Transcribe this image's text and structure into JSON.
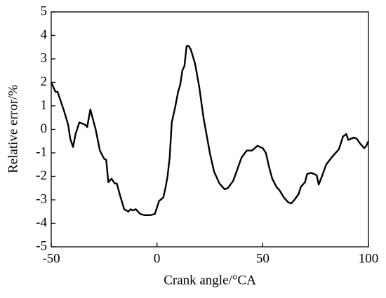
{
  "chart_data": {
    "type": "line",
    "xlabel": "Crank angle/°CA",
    "ylabel": "Relative error/%",
    "xlim": [
      -50,
      100
    ],
    "ylim": [
      -5,
      5
    ],
    "xticks": [
      -50,
      0,
      50,
      100
    ],
    "yticks": [
      -5,
      -4,
      -3,
      -2,
      -1,
      0,
      1,
      2,
      3,
      4,
      5
    ],
    "series": [
      {
        "color": "#000000",
        "x": [
          -50,
          -48,
          -47,
          -44,
          -42,
          -41,
          -39.7,
          -38.5,
          -36.7,
          -34,
          -33,
          -31.5,
          -29,
          -27,
          -25,
          -24,
          -23,
          -21.5,
          -20,
          -19,
          -17.5,
          -15.5,
          -13.5,
          -12.5,
          -11.5,
          -10,
          -8,
          -6,
          -3,
          -1,
          1,
          3,
          4,
          5,
          6,
          7,
          8.5,
          10,
          11,
          12,
          13,
          14,
          15,
          16,
          18,
          20,
          22,
          25,
          27,
          29.5,
          32,
          33.5,
          36,
          38,
          40,
          42.5,
          45,
          47.5,
          50,
          51.5,
          53,
          54.5,
          56.5,
          58,
          60,
          62,
          63.5,
          65,
          67,
          68,
          70,
          71,
          73,
          75.5,
          76.5,
          78,
          80,
          83,
          86,
          88,
          89.5,
          90.5,
          93,
          94.5,
          96,
          98,
          99,
          100
        ],
        "values": [
          2.0,
          1.6,
          1.6,
          0.8,
          0.2,
          -0.4,
          -0.75,
          -0.2,
          0.3,
          0.2,
          0.1,
          0.85,
          0.0,
          -0.9,
          -1.25,
          -1.3,
          -2.25,
          -2.1,
          -2.3,
          -2.3,
          -2.8,
          -3.4,
          -3.5,
          -3.4,
          -3.45,
          -3.4,
          -3.6,
          -3.65,
          -3.65,
          -3.6,
          -3.05,
          -2.9,
          -2.5,
          -2.0,
          -1.2,
          0.3,
          0.9,
          1.6,
          1.9,
          2.5,
          2.7,
          3.55,
          3.55,
          3.4,
          2.8,
          1.8,
          0.5,
          -1.0,
          -1.8,
          -2.3,
          -2.55,
          -2.5,
          -2.2,
          -1.7,
          -1.2,
          -0.9,
          -0.9,
          -0.7,
          -0.8,
          -1.0,
          -1.6,
          -2.1,
          -2.45,
          -2.6,
          -2.9,
          -3.1,
          -3.15,
          -3.0,
          -2.75,
          -2.45,
          -2.25,
          -1.9,
          -1.85,
          -1.95,
          -2.35,
          -2.0,
          -1.5,
          -1.15,
          -0.85,
          -0.3,
          -0.2,
          -0.45,
          -0.35,
          -0.4,
          -0.6,
          -0.8,
          -0.7,
          -0.5
        ]
      }
    ]
  }
}
